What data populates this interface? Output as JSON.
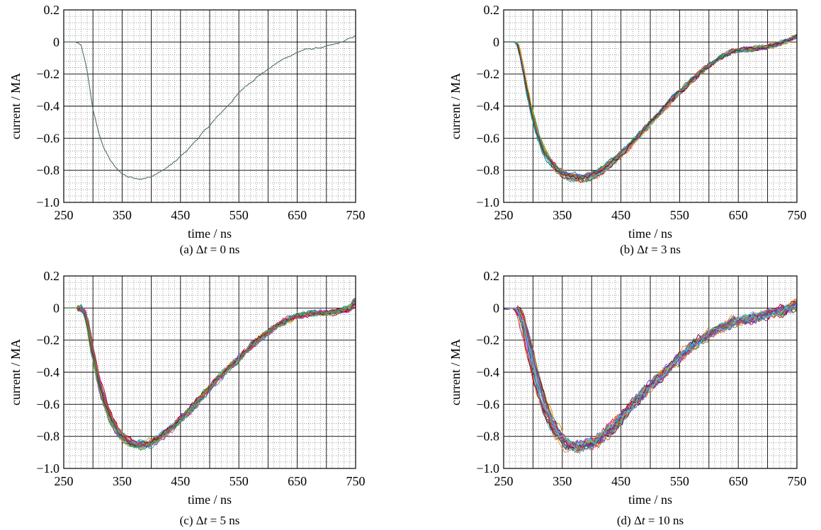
{
  "chart_data": [
    {
      "type": "line",
      "caption_prefix": "(a)",
      "caption_value": "0",
      "xlabel": "time / ns",
      "ylabel": "current / MA",
      "xlim": [
        250,
        750
      ],
      "ylim": [
        -1.0,
        0.2
      ],
      "xticks": [
        250,
        350,
        450,
        550,
        650,
        750
      ],
      "yticks": [
        "0.2",
        "0",
        "−0.2",
        "−0.4",
        "−0.6",
        "−0.8",
        "−1.0"
      ],
      "ytick_values": [
        0.2,
        0,
        -0.2,
        -0.4,
        -0.6,
        -0.8,
        -1.0
      ],
      "grid": "major and minor (dotted)",
      "series_count": 1,
      "series_colors": [
        "#4f6e6a"
      ],
      "waveform": {
        "x": [
          250,
          270,
          280,
          290,
          300,
          310,
          320,
          330,
          340,
          350,
          360,
          370,
          380,
          390,
          400,
          410,
          420,
          440,
          460,
          480,
          500,
          520,
          540,
          560,
          580,
          600,
          620,
          640,
          660,
          680,
          700,
          720,
          740,
          750
        ],
        "y": [
          0.0,
          0.0,
          -0.02,
          -0.18,
          -0.42,
          -0.57,
          -0.67,
          -0.74,
          -0.79,
          -0.82,
          -0.84,
          -0.845,
          -0.85,
          -0.85,
          -0.84,
          -0.82,
          -0.8,
          -0.75,
          -0.68,
          -0.6,
          -0.52,
          -0.44,
          -0.36,
          -0.28,
          -0.22,
          -0.17,
          -0.12,
          -0.08,
          -0.05,
          -0.04,
          -0.03,
          -0.01,
          0.02,
          0.04
        ]
      }
    },
    {
      "type": "line",
      "caption_prefix": "(b)",
      "caption_value": "3",
      "xlabel": "time / ns",
      "ylabel": "current / MA",
      "xlim": [
        250,
        750
      ],
      "ylim": [
        -1.0,
        0.2
      ],
      "xticks": [
        250,
        350,
        450,
        550,
        650,
        750
      ],
      "yticks": [
        "0.2",
        "0",
        "−0.2",
        "−0.4",
        "−0.6",
        "−0.8",
        "−1.0"
      ],
      "ytick_values": [
        0.2,
        0,
        -0.2,
        -0.4,
        -0.6,
        -0.8,
        -1.0
      ],
      "grid": "major and minor (dotted)",
      "series_count": 24,
      "time_shift_spread_ns": 3,
      "series_colors": [
        "#e6194b",
        "#3cb44b",
        "#4363d8",
        "#f58231",
        "#911eb4",
        "#42d4f4",
        "#f032e6",
        "#bfa200",
        "#469990",
        "#9a6324",
        "#800000",
        "#008080"
      ],
      "waveform": {
        "x": [
          250,
          265,
          270,
          275,
          280,
          290,
          300,
          310,
          320,
          330,
          340,
          350,
          360,
          370,
          380,
          390,
          400,
          410,
          420,
          440,
          460,
          480,
          500,
          520,
          540,
          560,
          580,
          600,
          620,
          640,
          660,
          680,
          700,
          720,
          740,
          750
        ],
        "y": [
          0.0,
          0.0,
          0.0,
          -0.02,
          -0.1,
          -0.3,
          -0.47,
          -0.6,
          -0.69,
          -0.75,
          -0.79,
          -0.82,
          -0.84,
          -0.845,
          -0.85,
          -0.85,
          -0.84,
          -0.82,
          -0.8,
          -0.74,
          -0.67,
          -0.59,
          -0.51,
          -0.43,
          -0.35,
          -0.28,
          -0.21,
          -0.15,
          -0.1,
          -0.06,
          -0.05,
          -0.04,
          -0.03,
          -0.01,
          0.02,
          0.04
        ]
      }
    },
    {
      "type": "line",
      "caption_prefix": "(c)",
      "caption_value": "5",
      "xlabel": "time / ns",
      "ylabel": "current / MA",
      "xlim": [
        250,
        750
      ],
      "ylim": [
        -1.0,
        0.2
      ],
      "xticks": [
        250,
        350,
        450,
        550,
        650,
        750
      ],
      "yticks": [
        "0.2",
        "0",
        "−0.2",
        "−0.4",
        "−0.6",
        "−0.8",
        "−1.0"
      ],
      "ytick_values": [
        0.2,
        0,
        -0.2,
        -0.4,
        -0.6,
        -0.8,
        -1.0
      ],
      "grid": "major and minor (dotted)",
      "series_count": 26,
      "time_shift_spread_ns": 5,
      "series_colors": [
        "#e6194b",
        "#3cb44b",
        "#4363d8",
        "#f58231",
        "#911eb4",
        "#42d4f4",
        "#f032e6",
        "#bfa200",
        "#469990",
        "#9a6324",
        "#800000",
        "#008080"
      ],
      "waveform": {
        "x": [
          250,
          270,
          280,
          285,
          290,
          300,
          310,
          320,
          330,
          340,
          350,
          360,
          370,
          380,
          390,
          400,
          410,
          420,
          440,
          460,
          480,
          500,
          520,
          540,
          560,
          580,
          600,
          620,
          640,
          660,
          680,
          700,
          720,
          740,
          750
        ],
        "y": [
          0.0,
          0.0,
          0.0,
          -0.02,
          -0.08,
          -0.28,
          -0.45,
          -0.58,
          -0.68,
          -0.75,
          -0.8,
          -0.83,
          -0.85,
          -0.85,
          -0.85,
          -0.84,
          -0.82,
          -0.79,
          -0.73,
          -0.66,
          -0.58,
          -0.5,
          -0.42,
          -0.35,
          -0.28,
          -0.21,
          -0.15,
          -0.1,
          -0.06,
          -0.04,
          -0.03,
          -0.03,
          -0.02,
          0.0,
          0.04
        ]
      }
    },
    {
      "type": "line",
      "caption_prefix": "(d)",
      "caption_value": "10",
      "xlabel": "time / ns",
      "ylabel": "current / MA",
      "xlim": [
        250,
        750
      ],
      "ylim": [
        -1.0,
        0.2
      ],
      "xticks": [
        250,
        350,
        450,
        550,
        650,
        750
      ],
      "yticks": [
        "0.2",
        "0",
        "−0.2",
        "−0.4",
        "−0.6",
        "−0.8",
        "−1.0"
      ],
      "ytick_values": [
        0.2,
        0,
        -0.2,
        -0.4,
        -0.6,
        -0.8,
        -1.0
      ],
      "grid": "major and minor (dotted)",
      "series_count": 30,
      "time_shift_spread_ns": 10,
      "series_colors": [
        "#e6194b",
        "#3cb44b",
        "#4363d8",
        "#f58231",
        "#911eb4",
        "#42d4f4",
        "#f032e6",
        "#bfa200",
        "#469990",
        "#9a6324",
        "#800000",
        "#008080"
      ],
      "waveform": {
        "x": [
          250,
          260,
          270,
          275,
          280,
          290,
          300,
          310,
          320,
          330,
          340,
          350,
          360,
          370,
          380,
          390,
          400,
          410,
          420,
          440,
          460,
          480,
          500,
          520,
          540,
          560,
          580,
          600,
          620,
          640,
          660,
          680,
          700,
          720,
          740,
          750
        ],
        "y": [
          -0.01,
          0.0,
          0.0,
          -0.02,
          -0.06,
          -0.2,
          -0.36,
          -0.5,
          -0.62,
          -0.71,
          -0.78,
          -0.82,
          -0.85,
          -0.86,
          -0.86,
          -0.85,
          -0.84,
          -0.82,
          -0.79,
          -0.72,
          -0.64,
          -0.56,
          -0.48,
          -0.41,
          -0.34,
          -0.27,
          -0.21,
          -0.16,
          -0.12,
          -0.09,
          -0.07,
          -0.06,
          -0.04,
          -0.02,
          0.0,
          0.03
        ]
      }
    }
  ]
}
